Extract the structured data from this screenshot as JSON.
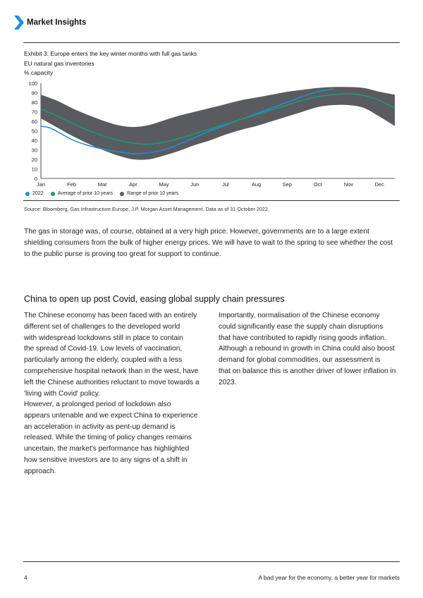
{
  "header": {
    "brand": "Market Insights"
  },
  "exhibit": {
    "title": "Exhibit 3: Europe enters the key winter months with full gas tanks",
    "subtitle": "EU natural gas inventories",
    "unit": "% capacity"
  },
  "chart_data": {
    "type": "line",
    "title": "Exhibit 3: Europe enters the key winter months with full gas tanks",
    "ylabel": "% capacity",
    "ylim": [
      0,
      100
    ],
    "yticks": [
      0,
      10,
      20,
      30,
      40,
      50,
      60,
      70,
      80,
      90,
      100
    ],
    "categories": [
      "Jan",
      "Feb",
      "Mar",
      "Apr",
      "May",
      "Jun",
      "Jul",
      "Aug",
      "Sep",
      "Oct",
      "Nov",
      "Dec"
    ],
    "grid": false,
    "legend_position": "bottom-left",
    "series": [
      {
        "name": "2022",
        "color": "#1f8fd6",
        "x": [
          0,
          0.3,
          0.6,
          1.0,
          1.5,
          2.0,
          2.5,
          3.0,
          3.5,
          4.0,
          4.5,
          5.0,
          5.5,
          6.0,
          6.5,
          7.0,
          7.5,
          8.0,
          8.5,
          9.0,
          9.5
        ],
        "values": [
          55,
          53,
          48,
          41,
          35,
          31,
          28,
          26,
          27,
          30,
          36,
          43,
          50,
          56,
          62,
          68,
          74,
          80,
          86,
          91,
          94
        ]
      },
      {
        "name": "Average of prior 10 years",
        "color": "#1a9a7a",
        "x": [
          0,
          0.5,
          1.0,
          1.5,
          2.0,
          2.5,
          3.0,
          3.5,
          4.0,
          4.5,
          5.0,
          5.5,
          6.0,
          6.5,
          7.0,
          7.5,
          8.0,
          8.5,
          9.0,
          9.5,
          10.0,
          10.5,
          11.0,
          11.5
        ],
        "values": [
          73,
          66,
          58,
          51,
          45,
          40,
          37,
          36,
          38,
          42,
          47,
          52,
          57,
          62,
          67,
          72,
          77,
          82,
          86,
          88,
          89,
          87,
          82,
          74
        ]
      },
      {
        "name": "Range of prior 10 years",
        "color": "#5a5b5e",
        "type": "area",
        "x": [
          0,
          0.5,
          1.0,
          1.5,
          2.0,
          2.5,
          3.0,
          3.5,
          4.0,
          4.5,
          5.0,
          5.5,
          6.0,
          6.5,
          7.0,
          7.5,
          8.0,
          8.5,
          9.0,
          9.5,
          10.0,
          10.5,
          11.0,
          11.5
        ],
        "low": [
          63,
          54,
          45,
          37,
          30,
          24,
          20,
          20,
          24,
          29,
          35,
          40,
          46,
          51,
          55,
          60,
          65,
          70,
          75,
          77,
          77,
          74,
          65,
          55
        ],
        "high": [
          88,
          82,
          74,
          67,
          61,
          56,
          54,
          56,
          61,
          66,
          70,
          74,
          78,
          82,
          85,
          88,
          91,
          93,
          95,
          96,
          96,
          95,
          91,
          88
        ]
      }
    ]
  },
  "legend": {
    "items": [
      {
        "label": "2022",
        "color": "#1f8fd6"
      },
      {
        "label": "Average of prior 10 years",
        "color": "#1a9a7a"
      },
      {
        "label": "Range of prior 10 years",
        "color": "#5a5b5e"
      }
    ]
  },
  "source": "Source: Bloomberg, Gas Infrastructure Europe, J.P. Morgan Asset Management. Data as of 31 October 2022.",
  "intro_paragraph": {
    "lines": [
      "The gas in storage was, of course, obtained at a very high price. However, governments are to a large extent",
      "shielding consumers from the bulk of higher energy prices. We will have to wait to the spring to see whether the cost",
      "to the public purse is proving too great for support to continue."
    ]
  },
  "section": {
    "title": "China to open up post Covid, easing global supply chain pressures",
    "left_p1": [
      "The Chinese economy has been faced with an entirely",
      "different set of challenges to the developed world",
      "with widespread lockdowns still in place to contain",
      "the spread of Covid-19. Low levels of vaccination,",
      "particularly among the elderly, coupled with a less",
      "comprehensive hospital network than in the west, have",
      "left the Chinese authorities reluctant to move towards a",
      "'living with Covid' policy."
    ],
    "left_p2": [
      "However, a prolonged period of lockdown also",
      "appears untenable and we expect China to experience",
      "an acceleration in activity as pent-up demand is",
      "released. While the timing of policy changes remains",
      "uncertain, the market's performance has highlighted",
      "how sensitive investors are to any signs of a shift in",
      "approach."
    ],
    "right_p1": [
      "Importantly, normalisation of the Chinese economy",
      "could significantly ease the supply chain disruptions",
      "that have contributed to rapidly rising goods inflation.",
      "Although a rebound in growth in China could also boost",
      "demand for global commodities, our assessment is",
      "that on balance this is another driver of lower inflation in",
      "2023."
    ]
  },
  "footer": {
    "page_number": "4",
    "doc_title": "A bad year for the economy, a better year for markets"
  }
}
